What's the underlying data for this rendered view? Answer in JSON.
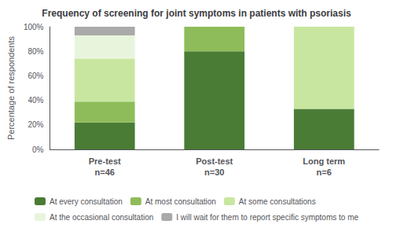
{
  "chart_data": {
    "type": "bar",
    "title": "Frequency of screening for joint symptoms in patients with psoriasis",
    "ylabel": "Percentage of respondents",
    "categories": [
      "Pre-test\nn=46",
      "Post-test\nn=30",
      "Long term\nn=6"
    ],
    "series": [
      {
        "name": "At every consultation",
        "color": "#4a7c35",
        "values": [
          22,
          80,
          33
        ]
      },
      {
        "name": "At most consultation",
        "color": "#8fbc5a",
        "values": [
          17,
          20,
          0
        ]
      },
      {
        "name": "At some consultations",
        "color": "#c8e6a0",
        "values": [
          35,
          0,
          67
        ]
      },
      {
        "name": "At the occasional consultation",
        "color": "#e8f5dc",
        "values": [
          19,
          0,
          0
        ]
      },
      {
        "name": "I will wait for them to report specific symptoms to me",
        "color": "#aaaaaa",
        "values": [
          7,
          0,
          0
        ]
      }
    ],
    "stacked": true,
    "ylim": [
      0,
      100
    ],
    "yticks": [
      {
        "value": 0,
        "label": "0%"
      },
      {
        "value": 20,
        "label": "20%"
      },
      {
        "value": 40,
        "label": "40%"
      },
      {
        "value": 60,
        "label": "60%"
      },
      {
        "value": 80,
        "label": "80%"
      },
      {
        "value": 100,
        "label": "100%"
      }
    ],
    "grid": false,
    "legend": "bottom"
  }
}
